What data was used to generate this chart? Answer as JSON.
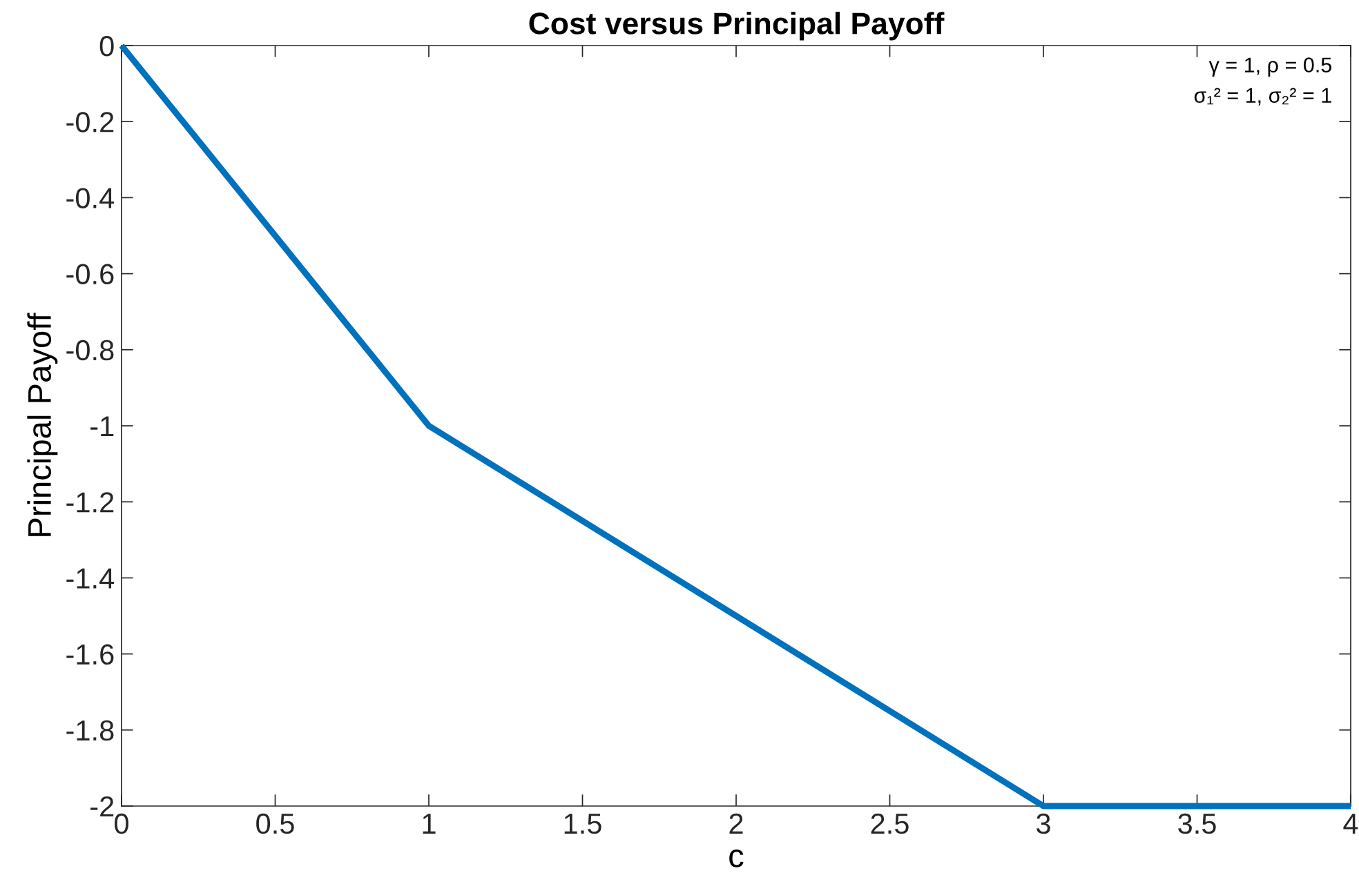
{
  "chart_data": {
    "type": "line",
    "title": "Cost versus Principal Payoff",
    "xlabel": "c",
    "ylabel": "Principal Payoff",
    "annotations": [
      "γ = 1, ρ = 0.5",
      "σ₁² = 1, σ₂² = 1"
    ],
    "series": [
      {
        "color": "#0072bd",
        "x": [
          0,
          1,
          3,
          4
        ],
        "values": [
          0,
          -1,
          -2,
          -2
        ]
      }
    ],
    "xlim": [
      0,
      4
    ],
    "xticks": [
      0,
      0.5,
      1,
      1.5,
      2,
      2.5,
      3,
      3.5,
      4
    ],
    "ylim": [
      -2,
      0
    ],
    "yticks": [
      {
        "value": -2,
        "label": "-2"
      },
      {
        "value": -1.8,
        "label": "-1.8"
      },
      {
        "value": -1.6,
        "label": "-1.6"
      },
      {
        "value": -1.4,
        "label": "-1.4"
      },
      {
        "value": -1.2,
        "label": "-1.2"
      },
      {
        "value": -1,
        "label": "-1"
      },
      {
        "value": -0.8,
        "label": "-0.8"
      },
      {
        "value": -0.6,
        "label": "-0.6"
      },
      {
        "value": -0.4,
        "label": "-0.4"
      },
      {
        "value": -0.2,
        "label": "-0.2"
      },
      0
    ],
    "grid": false,
    "marker": "none",
    "line_style": "solid"
  }
}
